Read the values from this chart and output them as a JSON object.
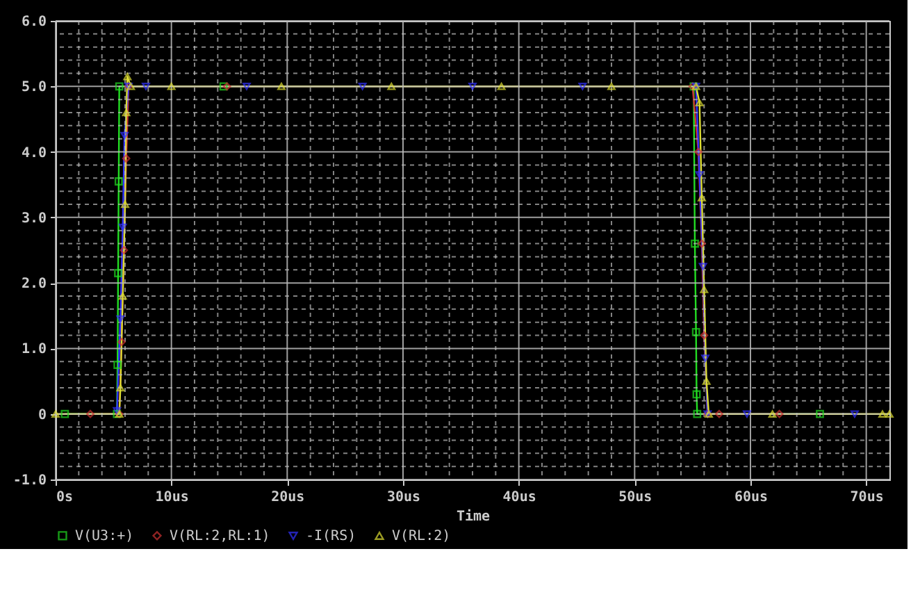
{
  "chart_data": {
    "type": "line",
    "xlabel": "Time",
    "xlim": [
      0,
      72
    ],
    "ylim": [
      -1,
      6
    ],
    "xticks": [
      {
        "value": 0,
        "label": "0s"
      },
      {
        "value": 2,
        "label": null
      },
      {
        "value": 4,
        "label": null
      },
      {
        "value": 6,
        "label": null
      },
      {
        "value": 8,
        "label": null
      },
      {
        "value": 10,
        "label": "10us"
      },
      {
        "value": 12,
        "label": null
      },
      {
        "value": 14,
        "label": null
      },
      {
        "value": 16,
        "label": null
      },
      {
        "value": 18,
        "label": null
      },
      {
        "value": 20,
        "label": "20us"
      },
      {
        "value": 22,
        "label": null
      },
      {
        "value": 24,
        "label": null
      },
      {
        "value": 26,
        "label": null
      },
      {
        "value": 28,
        "label": null
      },
      {
        "value": 30,
        "label": "30us"
      },
      {
        "value": 32,
        "label": null
      },
      {
        "value": 34,
        "label": null
      },
      {
        "value": 36,
        "label": null
      },
      {
        "value": 38,
        "label": null
      },
      {
        "value": 40,
        "label": "40us"
      },
      {
        "value": 42,
        "label": null
      },
      {
        "value": 44,
        "label": null
      },
      {
        "value": 46,
        "label": null
      },
      {
        "value": 48,
        "label": null
      },
      {
        "value": 50,
        "label": "50us"
      },
      {
        "value": 52,
        "label": null
      },
      {
        "value": 54,
        "label": null
      },
      {
        "value": 56,
        "label": null
      },
      {
        "value": 58,
        "label": null
      },
      {
        "value": 60,
        "label": "60us"
      },
      {
        "value": 62,
        "label": null
      },
      {
        "value": 64,
        "label": null
      },
      {
        "value": 66,
        "label": null
      },
      {
        "value": 68,
        "label": null
      },
      {
        "value": 70,
        "label": "70us"
      }
    ],
    "yticks": [
      {
        "value": -1,
        "label": "-1.0"
      },
      {
        "value": -0.8,
        "label": null
      },
      {
        "value": -0.6,
        "label": null
      },
      {
        "value": -0.4,
        "label": null
      },
      {
        "value": -0.2,
        "label": null
      },
      0,
      {
        "value": 0.2,
        "label": null
      },
      {
        "value": 0.4,
        "label": null
      },
      {
        "value": 0.6,
        "label": null
      },
      {
        "value": 0.8,
        "label": null
      },
      {
        "value": 1,
        "label": "1.0"
      },
      {
        "value": 1.2,
        "label": null
      },
      {
        "value": 1.4,
        "label": null
      },
      {
        "value": 1.6,
        "label": null
      },
      {
        "value": 1.8,
        "label": null
      },
      {
        "value": 2,
        "label": "2.0"
      },
      {
        "value": 2.2,
        "label": null
      },
      {
        "value": 2.4,
        "label": null
      },
      {
        "value": 2.6,
        "label": null
      },
      {
        "value": 2.8,
        "label": null
      },
      {
        "value": 3,
        "label": "3.0"
      },
      {
        "value": 3.2,
        "label": null
      },
      {
        "value": 3.4,
        "label": null
      },
      {
        "value": 3.6,
        "label": null
      },
      {
        "value": 3.8,
        "label": null
      },
      {
        "value": 4,
        "label": "4.0"
      },
      {
        "value": 4.2,
        "label": null
      },
      {
        "value": 4.4,
        "label": null
      },
      {
        "value": 4.6,
        "label": null
      },
      {
        "value": 4.8,
        "label": null
      },
      {
        "value": 5,
        "label": "5.0"
      },
      {
        "value": 5.2,
        "label": null
      },
      {
        "value": 5.4,
        "label": null
      },
      {
        "value": 5.6,
        "label": null
      },
      {
        "value": 5.8,
        "label": null
      },
      {
        "value": 6,
        "label": "6.0"
      }
    ],
    "grid": true,
    "legend": "bottom",
    "line_style": "solid",
    "series": [
      {
        "name": "V(U3:+)",
        "color": "#22dd22",
        "marker": "square",
        "x": [
          0.8,
          5.3,
          5.35,
          5.4,
          5.45,
          5.5,
          14.5,
          55.1,
          55.2,
          55.3,
          55.35,
          55.4,
          66
        ],
        "values": [
          0,
          0,
          0.75,
          2.15,
          3.55,
          5.0,
          5.0,
          5.0,
          2.6,
          1.25,
          0.3,
          0,
          0
        ]
      },
      {
        "name": "V(RL:2,RL:1)",
        "color": "#cc3333",
        "marker": "diamond",
        "x": [
          3.0,
          5.5,
          5.7,
          5.9,
          6.1,
          6.3,
          14.8,
          55.0,
          55.5,
          55.8,
          56.0,
          56.3,
          57.3,
          62.5
        ],
        "values": [
          0,
          0,
          1.1,
          2.5,
          3.9,
          5.0,
          5.0,
          5.0,
          4.0,
          2.6,
          1.2,
          0,
          0,
          0
        ]
      },
      {
        "name": "-I(RS)",
        "color": "#3333ff",
        "marker": "triangle-down",
        "x": [
          5.3,
          5.6,
          5.8,
          5.95,
          6.3,
          7.8,
          16.5,
          26.5,
          36,
          45.5,
          55.3,
          55.6,
          55.9,
          56.1,
          56.3,
          59.7,
          69
        ],
        "values": [
          0.05,
          1.45,
          2.85,
          4.25,
          5.0,
          5.0,
          5.0,
          5.0,
          5.0,
          5.0,
          5.0,
          3.65,
          2.25,
          0.85,
          0,
          0,
          0
        ]
      },
      {
        "name": "V(RL:2)",
        "color": "#dddd33",
        "marker": "triangle-up",
        "x": [
          0,
          5.5,
          5.6,
          5.8,
          6.0,
          6.1,
          6.2,
          6.5,
          10,
          19.5,
          29,
          38.5,
          48,
          55.3,
          55.6,
          55.8,
          56.0,
          56.2,
          56.4,
          61.9,
          71.4,
          72
        ],
        "values": [
          0,
          0,
          0.4,
          1.8,
          3.2,
          4.6,
          5.15,
          5.0,
          5.0,
          5.0,
          5.0,
          5.0,
          5.0,
          5.0,
          4.75,
          3.3,
          1.9,
          0.5,
          0,
          0,
          0,
          0
        ]
      }
    ]
  }
}
